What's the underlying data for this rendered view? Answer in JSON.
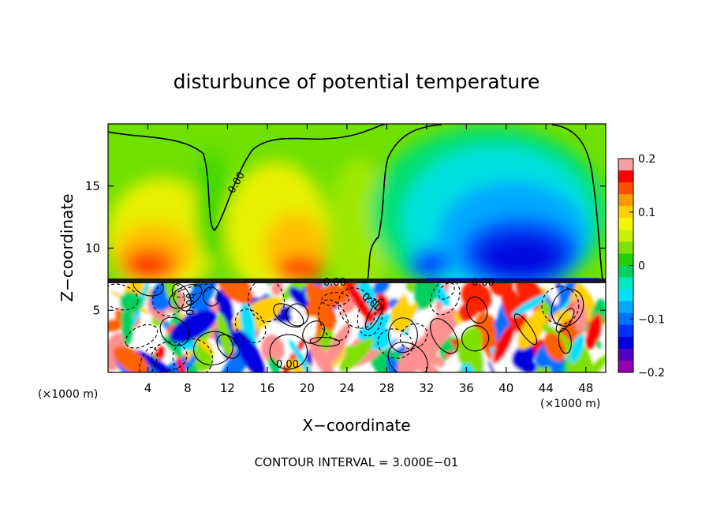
{
  "chart_data": {
    "type": "heatmap",
    "title": "disturbunce of potential temperature",
    "xlabel": "X−coordinate",
    "ylabel": "Z−coordinate",
    "x_unit_left": "(×1000 m)",
    "x_unit_right": "(×1000 m)",
    "footer": "CONTOUR INTERVAL = 3.000E−01",
    "xlim": [
      0,
      50
    ],
    "ylim": [
      0,
      20
    ],
    "x_ticks": [
      4,
      8,
      12,
      16,
      20,
      24,
      28,
      32,
      36,
      40,
      44,
      48
    ],
    "x_tick_labels": [
      "4",
      "8",
      "12",
      "16",
      "20",
      "24",
      "28",
      "32",
      "36",
      "40",
      "44",
      "48"
    ],
    "y_ticks": [
      5,
      10,
      15
    ],
    "y_tick_labels": [
      "5",
      "10",
      "15"
    ],
    "colorbar": {
      "range": [
        -0.2,
        0.2
      ],
      "tick_values": [
        0.2,
        0.1,
        0,
        -0.1,
        -0.2
      ],
      "tick_labels": [
        "0.2",
        "0.1",
        "0",
        "−0.1",
        "−0.2"
      ],
      "colors": [
        "#f7a0a0",
        "#ff0000",
        "#ff5000",
        "#ff9900",
        "#ffd000",
        "#f5f500",
        "#c8f000",
        "#80e000",
        "#20d000",
        "#00d060",
        "#00e8c0",
        "#00e0ff",
        "#00a8ff",
        "#0070ff",
        "#0030ff",
        "#0000e0",
        "#5000c0",
        "#9000b0"
      ]
    },
    "contour_labels": [
      "0.00",
      "0.00",
      "0.00",
      "0.00",
      "0.00",
      "0.00"
    ],
    "layers": {
      "upper_boundary_z": 7.3,
      "upper_warm_centers_x": [
        4,
        19
      ],
      "upper_warm_max": 0.17,
      "upper_cool_center_x": 40,
      "upper_cool_min": -0.17
    }
  }
}
